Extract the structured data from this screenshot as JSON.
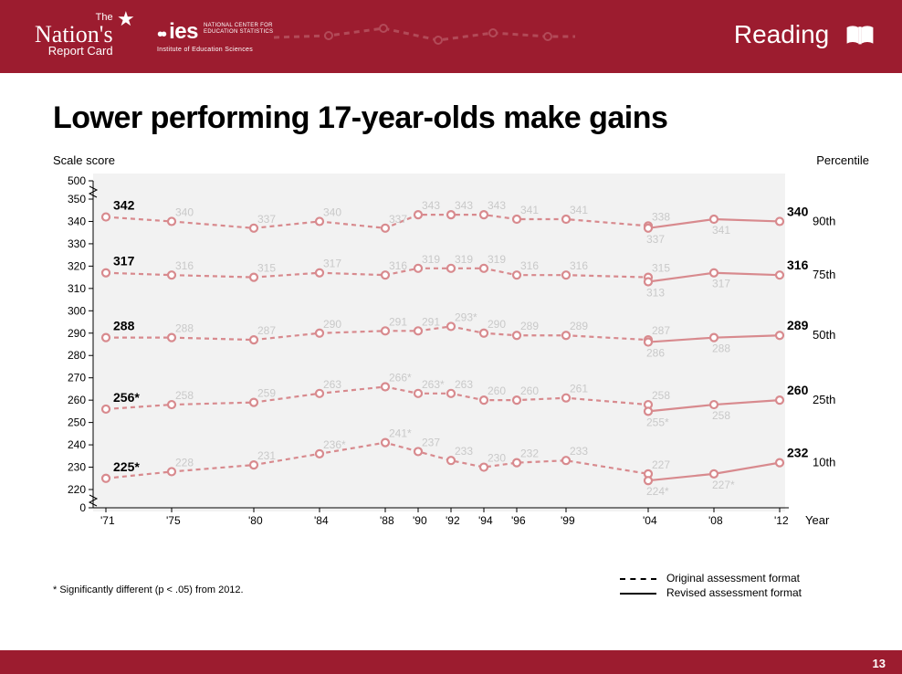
{
  "header": {
    "brand_the": "The",
    "brand_main": "Nation's",
    "brand_sub": "Report Card",
    "ies_big": "ies",
    "ies_line1": "NATIONAL CENTER FOR",
    "ies_line2": "EDUCATION STATISTICS",
    "ies_sub": "Institute  of  Education  Sciences",
    "subject": "Reading",
    "brand_color": "#9c1c2f"
  },
  "footer": {
    "page_number": "13"
  },
  "slide": {
    "title": "Lower performing 17-year-olds  make gains",
    "y_axis_title": "Scale score",
    "percentile_title": "Percentile",
    "x_axis_title": "Year",
    "footnote": "* Significantly different (p < .05) from 2012.",
    "legend": {
      "dashed": "Original assessment format",
      "solid": "Revised assessment format"
    }
  },
  "chart": {
    "type": "line",
    "background_color": "#f2f2f2",
    "line_color": "#d88a8e",
    "marker_stroke": "#d88a8e",
    "marker_fill": "#ffffff",
    "marker_radius": 4,
    "line_width": 2.2,
    "dash_pattern": "5 4",
    "y_ticks": [
      500,
      350,
      340,
      330,
      320,
      310,
      300,
      290,
      280,
      270,
      260,
      250,
      240,
      230,
      220,
      0
    ],
    "y_break_top_between": [
      500,
      350
    ],
    "y_break_bottom_between": [
      220,
      0
    ],
    "y_domain_visible": [
      217,
      353
    ],
    "years": [
      "'71",
      "'75",
      "'80",
      "'84",
      "'88",
      "'90",
      "'92",
      "'94",
      "'96",
      "'99",
      "'04",
      "'08",
      "'12"
    ],
    "year_numeric": [
      71,
      75,
      80,
      84,
      88,
      90,
      92,
      94,
      96,
      99,
      104,
      108,
      112
    ],
    "series": [
      {
        "name": "90th",
        "percentile_label": "90th",
        "orig": [
          342,
          340,
          337,
          340,
          337,
          343,
          343,
          343,
          341,
          341,
          338,
          null,
          null
        ],
        "rev": [
          null,
          null,
          null,
          null,
          null,
          null,
          null,
          null,
          null,
          null,
          337,
          341,
          340
        ],
        "orig_labels": [
          "342",
          "340",
          "337",
          "340",
          "337",
          "343",
          "343",
          "343",
          "341",
          "341",
          "338",
          "",
          ""
        ],
        "rev_labels": [
          "",
          "",
          "",
          "",
          "",
          "",
          "",
          "",
          "",
          "",
          "337",
          "341",
          "340"
        ],
        "first_bold": "342",
        "last_bold": "340"
      },
      {
        "name": "75th",
        "percentile_label": "75th",
        "orig": [
          317,
          316,
          315,
          317,
          316,
          319,
          319,
          319,
          316,
          316,
          315,
          null,
          null
        ],
        "rev": [
          null,
          null,
          null,
          null,
          null,
          null,
          null,
          null,
          null,
          null,
          313,
          317,
          316
        ],
        "orig_labels": [
          "317",
          "316",
          "315",
          "317",
          "316",
          "319",
          "319",
          "319",
          "316",
          "316",
          "315",
          "",
          ""
        ],
        "rev_labels": [
          "",
          "",
          "",
          "",
          "",
          "",
          "",
          "",
          "",
          "",
          "313",
          "317",
          "316"
        ],
        "first_bold": "317",
        "last_bold": "316"
      },
      {
        "name": "50th",
        "percentile_label": "50th",
        "orig": [
          288,
          288,
          287,
          290,
          291,
          291,
          293,
          290,
          289,
          289,
          287,
          null,
          null
        ],
        "rev": [
          null,
          null,
          null,
          null,
          null,
          null,
          null,
          null,
          null,
          null,
          286,
          288,
          289
        ],
        "orig_labels": [
          "288",
          "288",
          "287",
          "290",
          "291",
          "291",
          "293*",
          "290",
          "289",
          "289",
          "287",
          "",
          ""
        ],
        "rev_labels": [
          "",
          "",
          "",
          "",
          "",
          "",
          "",
          "",
          "",
          "",
          "286",
          "288",
          "289"
        ],
        "first_bold": "288",
        "last_bold": "289"
      },
      {
        "name": "25th",
        "percentile_label": "25th",
        "orig": [
          256,
          258,
          259,
          263,
          266,
          263,
          263,
          260,
          260,
          261,
          258,
          null,
          null
        ],
        "rev": [
          null,
          null,
          null,
          null,
          null,
          null,
          null,
          null,
          null,
          null,
          255,
          258,
          260
        ],
        "orig_labels": [
          "256*",
          "258",
          "259",
          "263",
          "266*",
          "263*",
          "263",
          "260",
          "260",
          "261",
          "258",
          "",
          ""
        ],
        "rev_labels": [
          "",
          "",
          "",
          "",
          "",
          "",
          "",
          "",
          "",
          "",
          "255*",
          "258",
          "260"
        ],
        "first_bold": "256*",
        "last_bold": "260"
      },
      {
        "name": "10th",
        "percentile_label": "10th",
        "orig": [
          225,
          228,
          231,
          236,
          241,
          237,
          233,
          230,
          232,
          233,
          227,
          null,
          null
        ],
        "rev": [
          null,
          null,
          null,
          null,
          null,
          null,
          null,
          null,
          null,
          null,
          224,
          227,
          232
        ],
        "orig_labels": [
          "225*",
          "228",
          "231",
          "236*",
          "241*",
          "237",
          "233",
          "230",
          "232",
          "233",
          "227",
          "",
          ""
        ],
        "rev_labels": [
          "",
          "",
          "",
          "",
          "",
          "",
          "",
          "",
          "",
          "",
          "224*",
          "227*",
          "232"
        ],
        "first_bold": "225*",
        "last_bold": "232"
      }
    ]
  }
}
